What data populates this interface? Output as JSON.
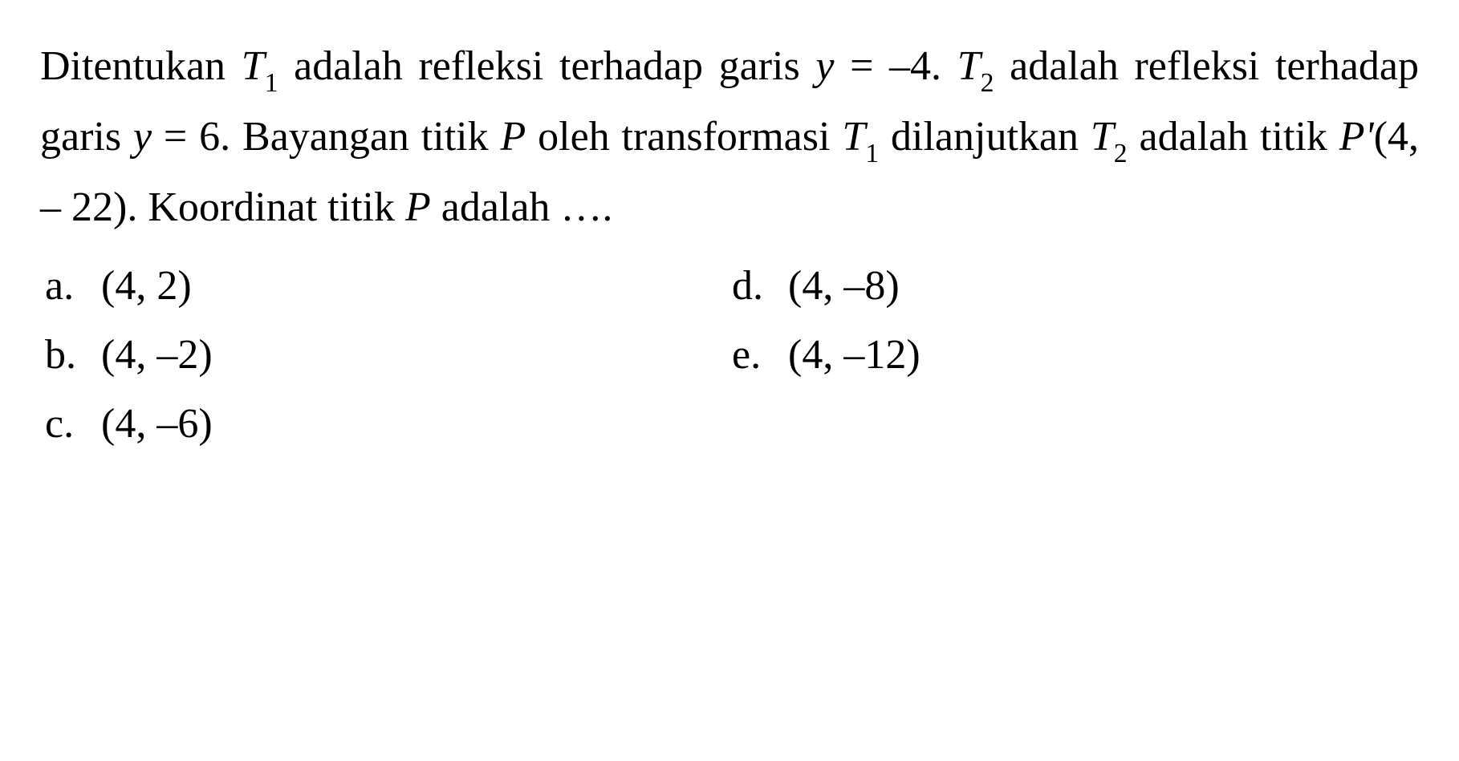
{
  "question": {
    "line1_part1": "Ditentukan ",
    "line1_T": "T",
    "line1_sub1": "1",
    "line1_part2": " adalah refleksi terhadap garis",
    "line2_part1": "",
    "line2_y": "y",
    "line2_part2": " = –4. ",
    "line2_T": "T",
    "line2_sub2": "2",
    "line2_part3": " adalah refleksi terhadap garis",
    "line3_y": "y",
    "line3_part1": " = 6. Bayangan titik ",
    "line3_P": "P",
    "line3_part2": " oleh transformasi",
    "line4_T1": "T",
    "line4_sub1": "1",
    "line4_part1": " dilanjutkan ",
    "line4_T2": "T",
    "line4_sub2": "2",
    "line4_part2": " adalah titik ",
    "line4_Pprime": "P'",
    "line4_part3": "(4, – 22).",
    "line5_part1": "Koordinat titik ",
    "line5_P": "P",
    "line5_part2": " adalah …."
  },
  "options": {
    "a": {
      "label": "a.",
      "value": "(4, 2)"
    },
    "b": {
      "label": "b.",
      "value": "(4, –2)"
    },
    "c": {
      "label": "c.",
      "value": "(4, –6)"
    },
    "d": {
      "label": "d.",
      "value": "(4, –8)"
    },
    "e": {
      "label": "e.",
      "value": "(4, –12)"
    }
  },
  "style": {
    "font_size_pt": 39,
    "text_color": "#000000",
    "background_color": "#ffffff",
    "font_family": "Times New Roman"
  }
}
